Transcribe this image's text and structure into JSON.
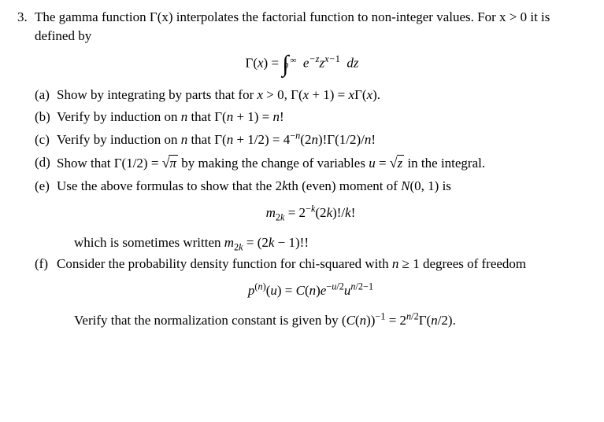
{
  "problem": {
    "number": "3.",
    "intro": "The gamma function Γ(x) interpolates the factorial function to non-integer values. For x > 0 it is defined by",
    "main_equation_html": "<span class='rm'>Γ(</span>x<span class='rm'>)</span> <span class='rm'>=</span> <span class='bigop'>∫</span><span class='limits'><span class='top'>∞</span><span class='bot'>0</span></span>&nbsp; e<span class='inline-sup'>−z</span>z<span class='inline-sup'>x−<span class='rm'>1</span></span> &nbsp;dz",
    "parts": {
      "a": {
        "label": "(a)",
        "text_html": "Show by integrating by parts that for <span class='math'>x</span> &gt; 0, Γ(<span class='math'>x</span> + 1) = <span class='math'>x</span>Γ(<span class='math'>x</span>)."
      },
      "b": {
        "label": "(b)",
        "text_html": "Verify by induction on <span class='math'>n</span> that Γ(<span class='math'>n</span> + 1) = <span class='math'>n</span>!"
      },
      "c": {
        "label": "(c)",
        "text_html": "Verify by induction on <span class='math'>n</span> that Γ(<span class='math'>n</span> + 1/2) = 4<span class='inline-sup'>−<span class='math'>n</span></span>(2<span class='math'>n</span>)!Γ(1/2)/<span class='math'>n</span>!"
      },
      "d": {
        "label": "(d)",
        "text_html": "Show that Γ(1/2) = <span class='radic'>√</span><span class='sqrt'><span class='math'>π</span></span> by making the change of variables <span class='math'>u</span> = <span class='radic'>√</span><span class='sqrt'><span class='math'>z</span></span> in the integral."
      },
      "e": {
        "label": "(e)",
        "lead_html": "Use the above formulas to show that the 2<span class='math'>k</span>th (even) moment of <span class='math'>N</span>(0, 1) is",
        "eq_html": "<span class='math'>m</span><span class='inline-sub'>2<span class='math'>k</span></span> = 2<span class='inline-sup'>−<span class='math'>k</span></span>(2<span class='math'>k</span>)!/<span class='math'>k</span>!",
        "trail_html": "which is sometimes written <span class='math'>m</span><span class='inline-sub'>2<span class='math'>k</span></span> = (2<span class='math'>k</span> − 1)!!"
      },
      "f": {
        "label": "(f)",
        "lead_html": "Consider the probability density function for chi-squared with <span class='math'>n</span> ≥ 1 degrees of freedom",
        "eq_html": "<span class='math'>p</span><span class='inline-sup'>(<span class='math'>n</span>)</span>(<span class='math'>u</span>) = <span class='math'>C</span>(<span class='math'>n</span>)<span class='math'>e</span><span class='inline-sup'>−<span class='math'>u</span>/2</span><span class='math'>u</span><span class='inline-sup'><span class='math'>n</span>/2−1</span>",
        "trail_html": "Verify that the normalization constant is given by (<span class='math'>C</span>(<span class='math'>n</span>))<span class='inline-sup'>−1</span> = 2<span class='inline-sup'><span class='math'>n</span>/2</span>Γ(<span class='math'>n</span>/2)."
      }
    }
  }
}
